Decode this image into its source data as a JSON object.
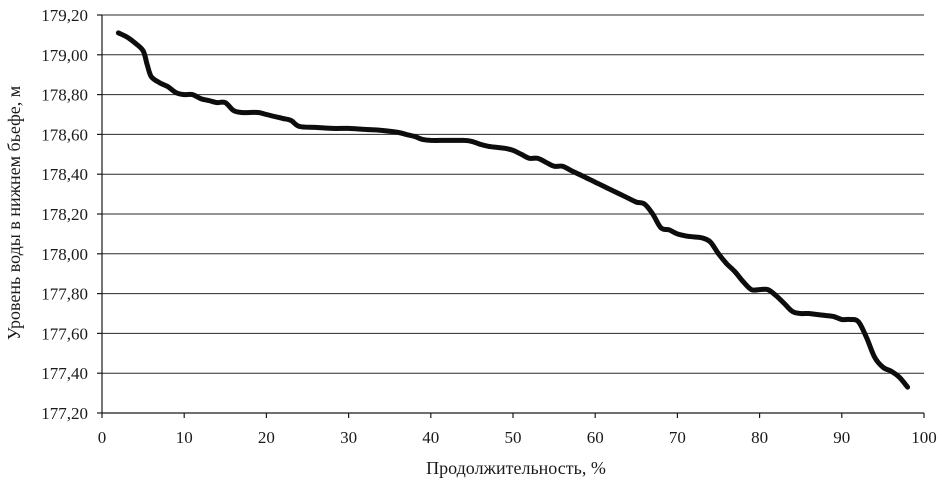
{
  "chart_data": {
    "type": "line",
    "title": "",
    "xlabel": "Продолжительность, %",
    "ylabel": "Уровень воды в нижнем бьефе, м",
    "xlim": [
      0,
      100
    ],
    "ylim": [
      177.2,
      179.2
    ],
    "x_ticks": [
      "0",
      "10",
      "20",
      "30",
      "40",
      "50",
      "60",
      "70",
      "80",
      "90",
      "100"
    ],
    "y_ticks": [
      "177,20",
      "177,40",
      "177,60",
      "177,80",
      "178,00",
      "178,20",
      "178,40",
      "178,60",
      "178,80",
      "179,00",
      "179,20"
    ],
    "grid": "horizontal",
    "line_color": "#0d0d0d",
    "series": [
      {
        "x": [
          2,
          3,
          4,
          5,
          5.5,
          6,
          7,
          8,
          9,
          10,
          11,
          12,
          13,
          14,
          15,
          16,
          17,
          18,
          19,
          20,
          21,
          22,
          23,
          24,
          26,
          28,
          30,
          32,
          34,
          36,
          37,
          38,
          39,
          40,
          42,
          44,
          45,
          46,
          47,
          48,
          49,
          50,
          51,
          52,
          53,
          54,
          55,
          56,
          57,
          58,
          59,
          60,
          61,
          62,
          63,
          64,
          65,
          66,
          67,
          68,
          69,
          70,
          71,
          72,
          73,
          74,
          75,
          76,
          77,
          78,
          79,
          80,
          81,
          82,
          83,
          84,
          85,
          86,
          87,
          88,
          89,
          90,
          91,
          92,
          93,
          94,
          95,
          96,
          97,
          98
        ],
        "y": [
          179.11,
          179.09,
          179.06,
          179.02,
          178.95,
          178.89,
          178.86,
          178.84,
          178.81,
          178.8,
          178.8,
          178.78,
          178.77,
          178.76,
          178.76,
          178.72,
          178.71,
          178.71,
          178.71,
          178.7,
          178.69,
          178.68,
          178.67,
          178.64,
          178.635,
          178.63,
          178.63,
          178.625,
          178.62,
          178.61,
          178.6,
          178.59,
          178.575,
          178.57,
          178.57,
          178.57,
          178.565,
          178.55,
          178.54,
          178.535,
          178.53,
          178.52,
          178.5,
          178.48,
          178.48,
          178.46,
          178.44,
          178.44,
          178.42,
          178.4,
          178.38,
          178.36,
          178.34,
          178.32,
          178.3,
          178.28,
          178.26,
          178.25,
          178.2,
          178.13,
          178.12,
          178.1,
          178.09,
          178.085,
          178.08,
          178.06,
          178.0,
          177.95,
          177.91,
          177.86,
          177.82,
          177.82,
          177.82,
          177.79,
          177.75,
          177.71,
          177.7,
          177.7,
          177.695,
          177.69,
          177.685,
          177.67,
          177.67,
          177.66,
          177.58,
          177.48,
          177.43,
          177.41,
          177.38,
          177.33
        ]
      }
    ]
  }
}
